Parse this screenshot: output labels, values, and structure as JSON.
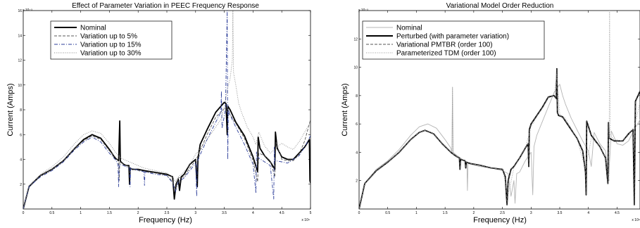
{
  "chart_data": [
    {
      "type": "line",
      "title": "Effect of Parameter Variation in PEEC Frequency Response",
      "xlabel": "Frequency (Hz)",
      "ylabel": "Current (Amps)",
      "x_exponent_label": "x 10⁹",
      "y_exponent_label": "x 10⁻³",
      "xlim": [
        0,
        5
      ],
      "ylim": [
        0,
        16
      ],
      "xticks": [
        "0",
        "0.5",
        "1",
        "1.5",
        "2",
        "2.5",
        "3",
        "3.5",
        "4",
        "4.5",
        "5"
      ],
      "yticks": [
        "2",
        "4",
        "6",
        "8",
        "10",
        "12",
        "14",
        "16"
      ],
      "legend_position": "top-left",
      "series": [
        {
          "name": "Nominal",
          "color": "#000000",
          "style": "solid",
          "x": [
            0,
            0.1,
            0.3,
            0.5,
            0.7,
            0.9,
            1.05,
            1.2,
            1.35,
            1.5,
            1.6,
            1.66,
            1.68,
            1.69,
            1.7,
            1.75,
            1.8,
            1.84,
            1.85,
            1.86,
            1.9,
            2.0,
            2.1,
            2.3,
            2.5,
            2.6,
            2.63,
            2.66,
            2.7,
            2.72,
            2.75,
            2.8,
            2.9,
            3.0,
            3.03,
            3.04,
            3.08,
            3.2,
            3.35,
            3.5,
            3.53,
            3.55,
            3.56,
            3.6,
            3.7,
            3.85,
            4.0,
            4.08,
            4.09,
            4.12,
            4.2,
            4.3,
            4.38,
            4.39,
            4.42,
            4.5,
            4.6,
            4.7,
            4.8,
            4.9,
            4.98,
            4.99,
            5.0
          ],
          "y": [
            0,
            1.8,
            2.7,
            3.2,
            3.9,
            4.9,
            5.6,
            6.0,
            5.7,
            4.8,
            4.1,
            3.9,
            7.1,
            3.9,
            3.8,
            3.6,
            3.5,
            3.5,
            2.0,
            3.3,
            3.2,
            3.2,
            3.1,
            2.95,
            2.8,
            2.6,
            0.8,
            2.0,
            2.4,
            1.5,
            2.6,
            2.8,
            3.6,
            4.0,
            1.8,
            4.0,
            5.2,
            6.4,
            7.8,
            8.6,
            8.5,
            6.0,
            8.3,
            8.0,
            7.0,
            5.9,
            4.2,
            3.0,
            5.8,
            4.9,
            4.3,
            3.8,
            3.2,
            6.2,
            4.9,
            4.2,
            4.0,
            4.0,
            4.5,
            5.0,
            5.6,
            2.3,
            2.1
          ]
        },
        {
          "name": "Variation up to 5%",
          "color": "#5a5a5a",
          "style": "dashed",
          "x": [
            0,
            0.1,
            0.3,
            0.5,
            0.7,
            0.9,
            1.05,
            1.2,
            1.35,
            1.5,
            1.6,
            1.66,
            1.67,
            1.68,
            1.75,
            1.8,
            1.85,
            1.86,
            1.87,
            1.9,
            2.0,
            2.1,
            2.3,
            2.5,
            2.6,
            2.65,
            2.7,
            2.8,
            2.9,
            3.0,
            3.05,
            3.2,
            3.35,
            3.5,
            3.55,
            3.6,
            3.7,
            3.85,
            4.0,
            4.08,
            4.1,
            4.2,
            4.3,
            4.38,
            4.4,
            4.5,
            4.6,
            4.7,
            4.8,
            4.9,
            5.0
          ],
          "y": [
            0,
            1.8,
            2.7,
            3.2,
            3.9,
            4.9,
            5.5,
            5.9,
            5.6,
            4.7,
            4.2,
            3.8,
            2.3,
            3.8,
            3.6,
            3.5,
            3.4,
            2.5,
            3.3,
            3.2,
            3.1,
            3.0,
            2.9,
            2.7,
            2.2,
            1.5,
            2.5,
            2.6,
            3.3,
            3.9,
            4.4,
            6.0,
            7.4,
            8.1,
            7.8,
            7.6,
            6.9,
            5.7,
            3.9,
            2.2,
            4.5,
            4.3,
            3.9,
            2.6,
            5.4,
            4.0,
            3.9,
            3.9,
            4.4,
            5.5,
            7.2
          ]
        },
        {
          "name": "Variation up to 15%",
          "color": "#2e3f9a",
          "style": "dashdot",
          "x": [
            0,
            0.1,
            0.3,
            0.5,
            0.7,
            0.9,
            1.05,
            1.2,
            1.35,
            1.5,
            1.6,
            1.65,
            1.66,
            1.67,
            1.75,
            1.85,
            1.86,
            1.87,
            1.95,
            2.1,
            2.11,
            2.12,
            2.3,
            2.5,
            2.6,
            2.65,
            2.7,
            2.8,
            2.9,
            3.0,
            3.02,
            3.03,
            3.1,
            3.2,
            3.35,
            3.44,
            3.45,
            3.46,
            3.52,
            3.55,
            3.56,
            3.57,
            3.6,
            3.7,
            3.85,
            4.0,
            4.05,
            4.06,
            4.07,
            4.2,
            4.3,
            4.36,
            4.37,
            4.38,
            4.5,
            4.6,
            4.7,
            4.8,
            4.9,
            5.0
          ],
          "y": [
            0,
            1.8,
            2.6,
            3.1,
            3.8,
            4.8,
            5.4,
            5.8,
            5.4,
            4.5,
            4.0,
            3.6,
            1.8,
            3.6,
            3.5,
            3.3,
            1.8,
            3.3,
            3.2,
            3.0,
            1.9,
            3.0,
            2.8,
            2.7,
            2.1,
            1.4,
            2.2,
            2.5,
            3.1,
            3.7,
            1.0,
            3.8,
            4.6,
            5.6,
            7.0,
            7.8,
            9.5,
            6.5,
            8.0,
            16.0,
            4.0,
            8.0,
            7.6,
            6.6,
            5.2,
            3.6,
            1.3,
            4.6,
            4.2,
            3.8,
            3.5,
            0.8,
            5.0,
            3.9,
            3.8,
            3.7,
            4.0,
            4.3,
            5.0,
            5.9
          ]
        },
        {
          "name": "Variation up to 30%",
          "color": "#8a8a8a",
          "style": "dotted",
          "x": [
            0,
            0.1,
            0.3,
            0.5,
            0.7,
            0.9,
            1.05,
            1.2,
            1.35,
            1.5,
            1.6,
            1.7,
            1.8,
            1.9,
            2.0,
            2.1,
            2.3,
            2.5,
            2.6,
            2.65,
            2.7,
            2.8,
            2.9,
            3.0,
            3.1,
            3.2,
            3.35,
            3.45,
            3.5,
            3.55,
            3.6,
            3.64,
            3.65,
            3.66,
            3.7,
            3.75,
            3.8,
            3.9,
            4.0,
            4.05,
            4.1,
            4.2,
            4.3,
            4.4,
            4.5,
            4.6,
            4.7,
            4.8,
            4.9,
            5.0
          ],
          "y": [
            0,
            1.9,
            2.8,
            3.4,
            4.2,
            5.3,
            6.0,
            6.3,
            6.1,
            5.3,
            4.6,
            4.1,
            3.9,
            3.7,
            3.5,
            3.3,
            3.1,
            2.9,
            2.6,
            2.2,
            2.6,
            3.0,
            3.6,
            4.4,
            5.0,
            5.6,
            6.6,
            7.3,
            8.2,
            9.6,
            10.5,
            12.0,
            16.0,
            11.0,
            10.0,
            8.5,
            7.8,
            6.6,
            5.8,
            5.2,
            6.2,
            5.1,
            4.5,
            4.9,
            5.3,
            5.0,
            4.8,
            5.4,
            6.2,
            7.0
          ]
        }
      ]
    },
    {
      "type": "line",
      "title": "Variational Model Order Reduction",
      "xlabel": "Frequency (Hz)",
      "ylabel": "Current (Amps)",
      "x_exponent_label": "x 10⁹",
      "y_exponent_label": "x 10⁻³",
      "xlim": [
        0,
        5
      ],
      "ylim": [
        0,
        14
      ],
      "xticks": [
        "0",
        "0.5",
        "1",
        "1.5",
        "2",
        "2.5",
        "3",
        "3.5",
        "4",
        "4.5"
      ],
      "yticks": [
        "2",
        "4",
        "6",
        "8",
        "10",
        "12"
      ],
      "legend_position": "top-left",
      "series": [
        {
          "name": "Nominal",
          "color": "#b4b4b4",
          "style": "solid",
          "x": [
            0,
            0.1,
            0.3,
            0.5,
            0.7,
            0.9,
            1.05,
            1.2,
            1.35,
            1.5,
            1.6,
            1.62,
            1.63,
            1.64,
            1.7,
            1.8,
            1.88,
            1.89,
            1.9,
            2.0,
            2.1,
            2.3,
            2.5,
            2.6,
            2.65,
            2.7,
            2.72,
            2.75,
            2.8,
            2.9,
            3.0,
            3.03,
            3.05,
            3.1,
            3.2,
            3.3,
            3.4,
            3.5,
            3.55,
            3.6,
            3.7,
            3.8,
            3.9,
            4.0,
            4.05,
            4.1,
            4.2,
            4.3,
            4.35,
            4.4,
            4.5,
            4.6,
            4.7,
            4.8,
            4.9,
            5.0
          ],
          "y": [
            0,
            1.8,
            2.8,
            3.4,
            4.2,
            5.2,
            5.8,
            6.0,
            5.7,
            4.9,
            4.3,
            4.0,
            8.6,
            4.0,
            3.8,
            3.5,
            3.3,
            1.3,
            3.2,
            3.1,
            3.0,
            2.9,
            2.7,
            2.5,
            0.9,
            2.0,
            0.4,
            2.5,
            2.6,
            3.4,
            4.0,
            1.0,
            4.4,
            5.2,
            6.2,
            7.2,
            8.2,
            8.8,
            8.0,
            7.4,
            6.4,
            5.6,
            4.8,
            4.1,
            3.0,
            5.4,
            4.6,
            4.1,
            2.0,
            5.5,
            4.6,
            4.5,
            4.8,
            5.6,
            6.3,
            7.0
          ]
        },
        {
          "name": "Perturbed (with parameter variation)",
          "color": "#000000",
          "style": "solid",
          "x": [
            0,
            0.1,
            0.3,
            0.5,
            0.7,
            0.9,
            1.05,
            1.15,
            1.3,
            1.45,
            1.6,
            1.7,
            1.75,
            1.76,
            1.77,
            1.85,
            1.86,
            1.87,
            1.95,
            2.1,
            2.3,
            2.5,
            2.55,
            2.58,
            2.6,
            2.65,
            2.7,
            2.8,
            2.9,
            2.95,
            2.96,
            2.97,
            3.0,
            3.1,
            3.2,
            3.3,
            3.4,
            3.44,
            3.45,
            3.46,
            3.48,
            3.55,
            3.65,
            3.8,
            3.9,
            3.95,
            3.96,
            3.97,
            4.05,
            4.2,
            4.3,
            4.34,
            4.35,
            4.36,
            4.45,
            4.6,
            4.7,
            4.78,
            4.8,
            4.82,
            4.9,
            5.0
          ],
          "y": [
            0,
            1.8,
            2.7,
            3.3,
            4.0,
            4.9,
            5.4,
            5.55,
            5.3,
            4.6,
            4.0,
            3.7,
            3.6,
            2.8,
            3.5,
            3.4,
            2.9,
            3.3,
            3.2,
            3.1,
            2.9,
            2.8,
            2.3,
            0.3,
            2.0,
            2.8,
            3.0,
            3.6,
            4.3,
            4.6,
            3.0,
            5.6,
            6.0,
            6.6,
            7.2,
            7.9,
            8.0,
            7.8,
            9.9,
            6.8,
            6.6,
            6.5,
            5.9,
            5.0,
            4.1,
            2.6,
            1.0,
            6.2,
            5.2,
            4.4,
            3.6,
            1.8,
            6.1,
            5.0,
            4.8,
            4.8,
            5.3,
            5.6,
            0.3,
            7.6,
            8.3,
            8.1
          ]
        },
        {
          "name": "Variational PMTBR (order 100)",
          "color": "#555555",
          "style": "dashed",
          "x": [
            0,
            0.1,
            0.3,
            0.5,
            0.7,
            0.9,
            1.05,
            1.15,
            1.3,
            1.45,
            1.6,
            1.7,
            1.75,
            1.76,
            1.77,
            1.85,
            1.86,
            1.87,
            1.95,
            2.1,
            2.3,
            2.5,
            2.55,
            2.58,
            2.6,
            2.65,
            2.7,
            2.8,
            2.9,
            2.95,
            2.96,
            2.97,
            3.0,
            3.1,
            3.2,
            3.3,
            3.4,
            3.44,
            3.45,
            3.46,
            3.48,
            3.55,
            3.65,
            3.8,
            3.9,
            3.95,
            3.96,
            3.97,
            4.05,
            4.2,
            4.3,
            4.34,
            4.35,
            4.36,
            4.45,
            4.6,
            4.7,
            4.78,
            4.8,
            4.82,
            4.9,
            5.0
          ],
          "y": [
            0,
            1.8,
            2.7,
            3.3,
            4.0,
            4.9,
            5.4,
            5.55,
            5.3,
            4.6,
            4.0,
            3.7,
            3.6,
            2.8,
            3.5,
            3.4,
            2.9,
            3.3,
            3.2,
            3.1,
            2.9,
            2.8,
            2.3,
            0.3,
            2.0,
            2.8,
            3.0,
            3.6,
            4.3,
            4.6,
            3.0,
            5.6,
            6.0,
            6.6,
            7.2,
            7.9,
            8.0,
            7.8,
            9.9,
            6.8,
            6.6,
            6.5,
            5.9,
            5.0,
            4.1,
            2.6,
            1.0,
            6.2,
            5.2,
            4.4,
            3.6,
            1.8,
            6.1,
            5.0,
            4.8,
            4.8,
            5.3,
            5.6,
            0.3,
            7.6,
            8.3,
            8.1
          ]
        },
        {
          "name": "Parameterized TDM (order 100)",
          "color": "#9a9a9a",
          "style": "dotted",
          "x": [
            0,
            0.1,
            0.3,
            0.5,
            0.7,
            0.9,
            1.05,
            1.15,
            1.3,
            1.45,
            1.6,
            1.62,
            1.63,
            1.64,
            1.7,
            1.85,
            1.95,
            2.1,
            2.3,
            2.5,
            2.6,
            2.7,
            2.8,
            2.9,
            3.0,
            3.1,
            3.2,
            3.3,
            3.4,
            3.45,
            3.5,
            3.6,
            3.8,
            3.95,
            4.05,
            4.2,
            4.3,
            4.36,
            4.37,
            4.38,
            4.45,
            4.6,
            4.7,
            4.8,
            4.9,
            5.0
          ],
          "y": [
            0,
            1.8,
            2.7,
            3.3,
            4.0,
            4.9,
            5.4,
            5.55,
            5.3,
            4.6,
            4.0,
            4.0,
            8.6,
            3.8,
            3.7,
            3.4,
            3.2,
            3.1,
            2.9,
            2.8,
            1.0,
            2.9,
            3.6,
            4.3,
            5.8,
            6.5,
            7.1,
            7.8,
            8.0,
            9.6,
            6.7,
            6.4,
            5.0,
            2.8,
            5.0,
            4.4,
            3.7,
            2.0,
            14.0,
            5.2,
            4.9,
            4.8,
            5.2,
            5.8,
            7.5,
            8.0
          ]
        }
      ]
    }
  ]
}
